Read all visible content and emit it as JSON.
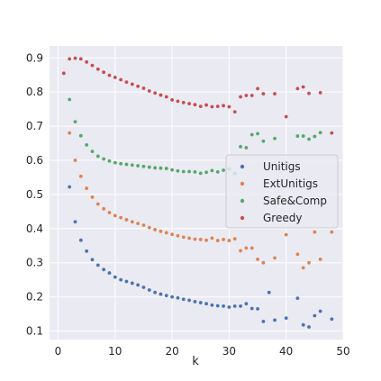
{
  "chart_data": {
    "type": "scatter",
    "xlabel": "k",
    "ylabel": "",
    "xlim": [
      -1.5,
      50
    ],
    "ylim": [
      0.075,
      0.935
    ],
    "xticks": [
      0,
      10,
      20,
      30,
      40,
      50
    ],
    "yticks": [
      0.1,
      0.2,
      0.3,
      0.4,
      0.5,
      0.6,
      0.7,
      0.8,
      0.9
    ],
    "grid": true,
    "legend_position": "center-right",
    "series": [
      {
        "name": "Unitigs",
        "color": "#4c72b0",
        "points": [
          [
            2,
            0.522
          ],
          [
            3,
            0.42
          ],
          [
            4,
            0.366
          ],
          [
            5,
            0.334
          ],
          [
            6,
            0.309
          ],
          [
            7,
            0.293
          ],
          [
            8,
            0.28
          ],
          [
            9,
            0.27
          ],
          [
            10,
            0.258
          ],
          [
            11,
            0.25
          ],
          [
            12,
            0.245
          ],
          [
            13,
            0.24
          ],
          [
            14,
            0.235
          ],
          [
            15,
            0.228
          ],
          [
            16,
            0.22
          ],
          [
            17,
            0.213
          ],
          [
            18,
            0.208
          ],
          [
            19,
            0.204
          ],
          [
            20,
            0.2
          ],
          [
            21,
            0.197
          ],
          [
            22,
            0.193
          ],
          [
            23,
            0.19
          ],
          [
            24,
            0.186
          ],
          [
            25,
            0.183
          ],
          [
            26,
            0.18
          ],
          [
            27,
            0.176
          ],
          [
            28,
            0.174
          ],
          [
            29,
            0.173
          ],
          [
            30,
            0.17
          ],
          [
            31,
            0.173
          ],
          [
            32,
            0.173
          ],
          [
            33,
            0.18
          ],
          [
            34,
            0.166
          ],
          [
            35,
            0.165
          ],
          [
            36,
            0.128
          ],
          [
            37,
            0.213
          ],
          [
            38,
            0.132
          ],
          [
            40,
            0.138
          ],
          [
            42,
            0.196
          ],
          [
            43,
            0.118
          ],
          [
            44,
            0.112
          ],
          [
            45,
            0.145
          ],
          [
            46,
            0.158
          ],
          [
            48,
            0.135
          ]
        ]
      },
      {
        "name": "ExtUnitigs",
        "color": "#dd8452",
        "points": [
          [
            2,
            0.68
          ],
          [
            3,
            0.6
          ],
          [
            4,
            0.553
          ],
          [
            5,
            0.518
          ],
          [
            6,
            0.492
          ],
          [
            7,
            0.472
          ],
          [
            8,
            0.458
          ],
          [
            9,
            0.447
          ],
          [
            10,
            0.438
          ],
          [
            11,
            0.432
          ],
          [
            12,
            0.426
          ],
          [
            13,
            0.42
          ],
          [
            14,
            0.415
          ],
          [
            15,
            0.41
          ],
          [
            16,
            0.403
          ],
          [
            17,
            0.397
          ],
          [
            18,
            0.392
          ],
          [
            19,
            0.388
          ],
          [
            20,
            0.383
          ],
          [
            21,
            0.379
          ],
          [
            22,
            0.375
          ],
          [
            23,
            0.372
          ],
          [
            24,
            0.369
          ],
          [
            25,
            0.368
          ],
          [
            26,
            0.366
          ],
          [
            27,
            0.372
          ],
          [
            28,
            0.365
          ],
          [
            29,
            0.368
          ],
          [
            30,
            0.365
          ],
          [
            31,
            0.37
          ],
          [
            32,
            0.335
          ],
          [
            33,
            0.343
          ],
          [
            34,
            0.343
          ],
          [
            35,
            0.31
          ],
          [
            36,
            0.3
          ],
          [
            38,
            0.314
          ],
          [
            40,
            0.382
          ],
          [
            42,
            0.325
          ],
          [
            43,
            0.285
          ],
          [
            44,
            0.3
          ],
          [
            45,
            0.39
          ],
          [
            46,
            0.31
          ],
          [
            48,
            0.39
          ]
        ]
      },
      {
        "name": "Safe&Comp",
        "color": "#55a868",
        "points": [
          [
            2,
            0.778
          ],
          [
            3,
            0.713
          ],
          [
            4,
            0.672
          ],
          [
            5,
            0.645
          ],
          [
            6,
            0.626
          ],
          [
            7,
            0.612
          ],
          [
            8,
            0.604
          ],
          [
            9,
            0.598
          ],
          [
            10,
            0.593
          ],
          [
            11,
            0.59
          ],
          [
            12,
            0.588
          ],
          [
            13,
            0.586
          ],
          [
            14,
            0.584
          ],
          [
            15,
            0.582
          ],
          [
            16,
            0.58
          ],
          [
            17,
            0.578
          ],
          [
            18,
            0.577
          ],
          [
            19,
            0.576
          ],
          [
            20,
            0.572
          ],
          [
            21,
            0.569
          ],
          [
            22,
            0.567
          ],
          [
            23,
            0.567
          ],
          [
            24,
            0.566
          ],
          [
            25,
            0.562
          ],
          [
            26,
            0.565
          ],
          [
            27,
            0.57
          ],
          [
            28,
            0.566
          ],
          [
            29,
            0.571
          ],
          [
            30,
            0.575
          ],
          [
            31,
            0.562
          ],
          [
            32,
            0.64
          ],
          [
            33,
            0.637
          ],
          [
            34,
            0.675
          ],
          [
            35,
            0.678
          ],
          [
            36,
            0.656
          ],
          [
            38,
            0.664
          ],
          [
            42,
            0.671
          ],
          [
            43,
            0.671
          ],
          [
            44,
            0.662
          ],
          [
            45,
            0.67
          ],
          [
            46,
            0.681
          ]
        ]
      },
      {
        "name": "Greedy",
        "color": "#c44e52",
        "points": [
          [
            1,
            0.855
          ],
          [
            2,
            0.897
          ],
          [
            3,
            0.899
          ],
          [
            4,
            0.897
          ],
          [
            5,
            0.888
          ],
          [
            6,
            0.878
          ],
          [
            7,
            0.867
          ],
          [
            8,
            0.858
          ],
          [
            9,
            0.849
          ],
          [
            10,
            0.843
          ],
          [
            11,
            0.836
          ],
          [
            12,
            0.829
          ],
          [
            13,
            0.823
          ],
          [
            14,
            0.817
          ],
          [
            15,
            0.811
          ],
          [
            16,
            0.803
          ],
          [
            17,
            0.797
          ],
          [
            18,
            0.791
          ],
          [
            19,
            0.786
          ],
          [
            20,
            0.777
          ],
          [
            21,
            0.773
          ],
          [
            22,
            0.769
          ],
          [
            23,
            0.766
          ],
          [
            24,
            0.763
          ],
          [
            25,
            0.758
          ],
          [
            26,
            0.762
          ],
          [
            27,
            0.757
          ],
          [
            28,
            0.758
          ],
          [
            29,
            0.76
          ],
          [
            30,
            0.757
          ],
          [
            31,
            0.742
          ],
          [
            32,
            0.786
          ],
          [
            33,
            0.79
          ],
          [
            34,
            0.79
          ],
          [
            35,
            0.81
          ],
          [
            36,
            0.795
          ],
          [
            38,
            0.795
          ],
          [
            40,
            0.728
          ],
          [
            42,
            0.81
          ],
          [
            43,
            0.815
          ],
          [
            44,
            0.796
          ],
          [
            46,
            0.798
          ],
          [
            48,
            0.68
          ]
        ]
      }
    ]
  }
}
